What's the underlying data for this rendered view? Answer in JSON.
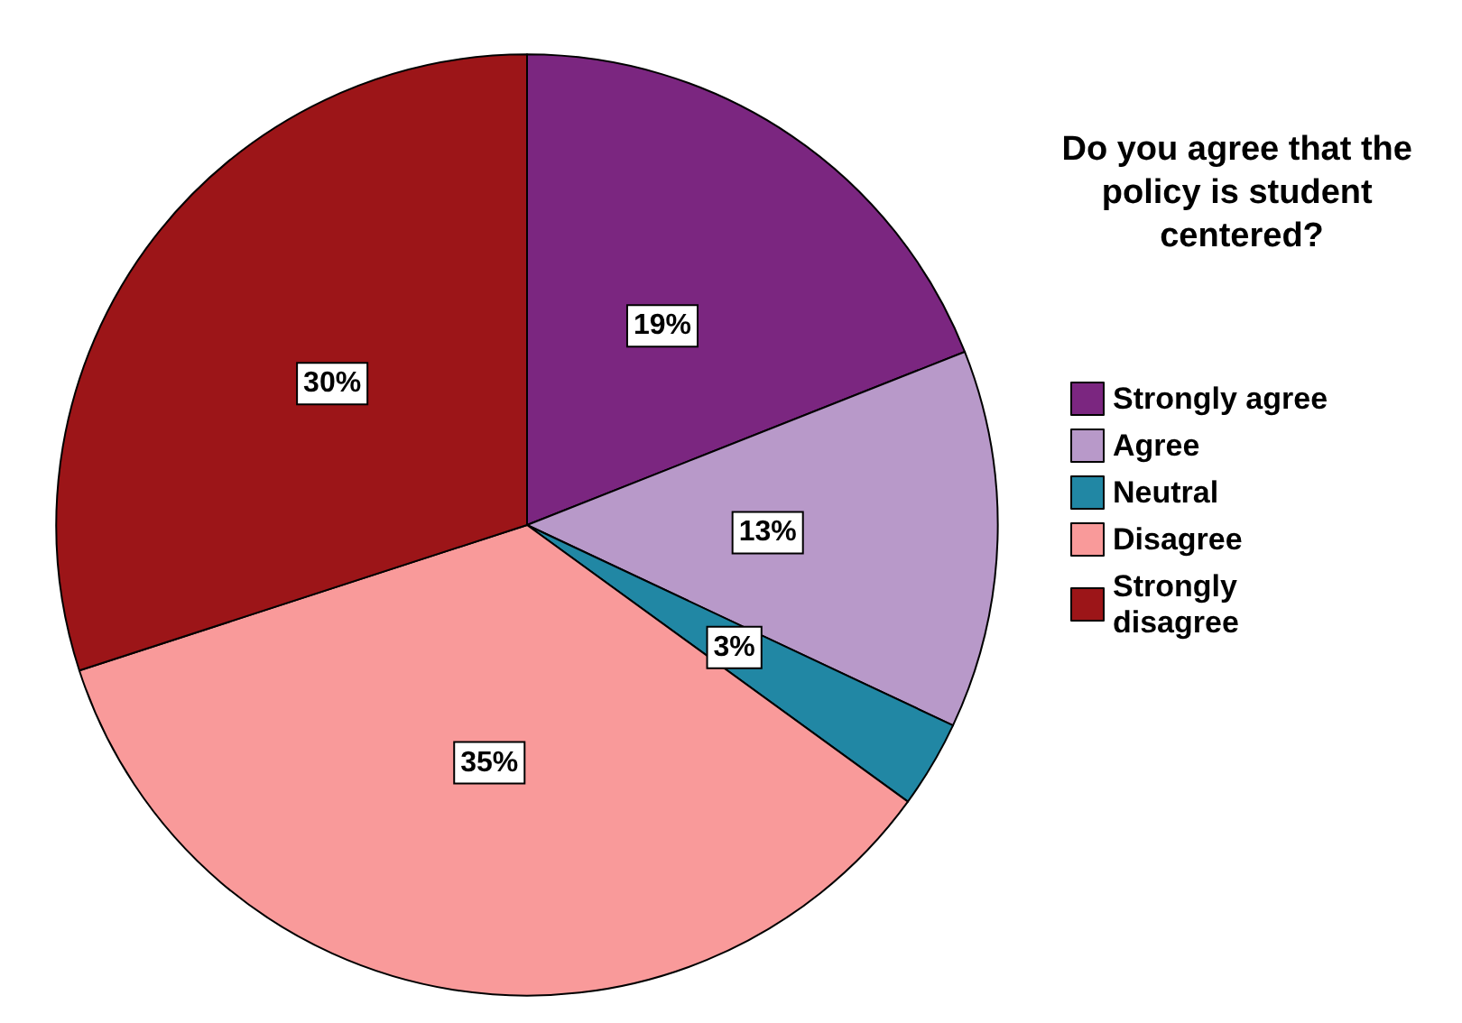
{
  "chart_data": {
    "type": "pie",
    "legend_title": "Do you agree that the policy is student centered?",
    "categories": [
      "Strongly agree",
      "Agree",
      "Neutral",
      "Disagree",
      "Strongly disagree"
    ],
    "values": [
      19,
      13,
      3,
      35,
      30
    ],
    "colors": [
      "#7b2680",
      "#b899c9",
      "#2187a4",
      "#f99a9a",
      "#9c1518"
    ],
    "value_labels": [
      "19%",
      "13%",
      "3%",
      "35%",
      "30%"
    ],
    "legend": "right"
  }
}
